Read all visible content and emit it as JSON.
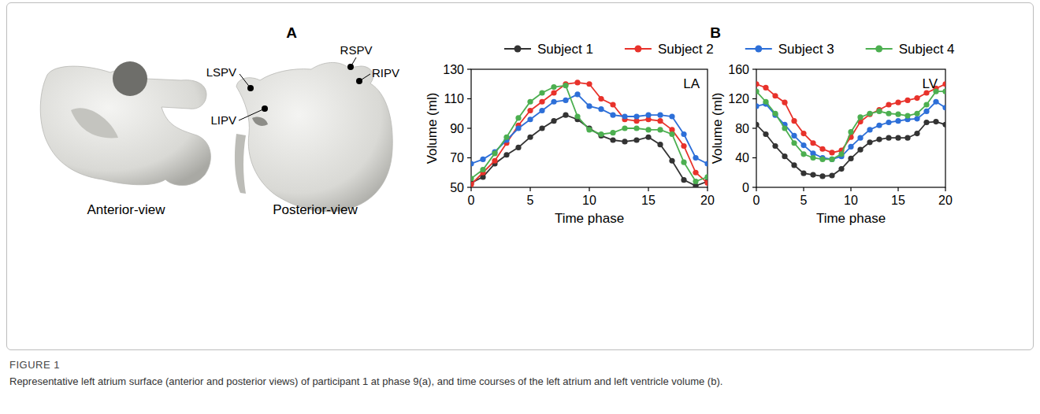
{
  "figure": {
    "label": "FIGURE 1",
    "caption": "Representative left atrium surface (anterior and posterior views) of participant 1 at phase 9(a), and time courses of the left atrium and left ventricle volume (b).",
    "panel_labels": [
      "A",
      "B"
    ],
    "views": [
      "Anterior-view",
      "Posterior-view"
    ],
    "vein_labels": [
      "LSPV",
      "RSPV",
      "RIPV",
      "LIPV"
    ]
  },
  "chart_data": [
    {
      "type": "line",
      "title": "LA",
      "x_label": "Time phase",
      "y_label": "Volume (ml)",
      "x": [
        0,
        1,
        2,
        3,
        4,
        5,
        6,
        7,
        8,
        9,
        10,
        11,
        12,
        13,
        14,
        15,
        16,
        17,
        18,
        19,
        20
      ],
      "xlim": [
        0,
        20
      ],
      "xticks": [
        0,
        5,
        10,
        15,
        20
      ],
      "ylim": [
        50,
        130
      ],
      "yticks": [
        50,
        70,
        90,
        110,
        130
      ],
      "legend": "top",
      "marker": "circle",
      "grid": false,
      "series": [
        {
          "name": "Subject 1",
          "color": "#333333",
          "values": [
            53,
            57,
            66,
            72,
            77,
            84,
            90,
            95,
            99,
            96,
            90,
            85,
            82,
            81,
            82,
            84,
            79,
            68,
            55,
            51,
            54
          ]
        },
        {
          "name": "Subject 2",
          "color": "#e8322b",
          "values": [
            52,
            60,
            68,
            80,
            92,
            102,
            108,
            114,
            120,
            121,
            120,
            110,
            106,
            96,
            95,
            96,
            95,
            89,
            78,
            60,
            53
          ]
        },
        {
          "name": "Subject 3",
          "color": "#2d6fd8",
          "values": [
            66,
            69,
            74,
            82,
            90,
            96,
            102,
            108,
            109,
            113,
            105,
            103,
            99,
            98,
            98,
            99,
            99,
            98,
            86,
            70,
            66
          ]
        },
        {
          "name": "Subject 4",
          "color": "#4caf50",
          "values": [
            56,
            62,
            73,
            84,
            97,
            108,
            114,
            118,
            119,
            98,
            89,
            86,
            87,
            90,
            90,
            89,
            89,
            86,
            67,
            54,
            57
          ]
        }
      ]
    },
    {
      "type": "line",
      "title": "LV",
      "x_label": "Time phase",
      "y_label": "Volume (ml)",
      "x": [
        0,
        1,
        2,
        3,
        4,
        5,
        6,
        7,
        8,
        9,
        10,
        11,
        12,
        13,
        14,
        15,
        16,
        17,
        18,
        19,
        20
      ],
      "xlim": [
        0,
        20
      ],
      "xticks": [
        0,
        5,
        10,
        15,
        20
      ],
      "ylim": [
        0,
        160
      ],
      "yticks": [
        0,
        40,
        80,
        120,
        160
      ],
      "marker": "circle",
      "grid": false,
      "series": [
        {
          "color": "#333333",
          "values": [
            85,
            72,
            56,
            42,
            30,
            19,
            17,
            15,
            16,
            25,
            39,
            51,
            61,
            65,
            67,
            67,
            67,
            73,
            88,
            89,
            85
          ]
        },
        {
          "color": "#e8322b",
          "values": [
            140,
            135,
            124,
            115,
            90,
            73,
            60,
            52,
            47,
            50,
            68,
            89,
            99,
            105,
            112,
            115,
            118,
            121,
            128,
            134,
            140
          ]
        },
        {
          "color": "#2d6fd8",
          "values": [
            110,
            113,
            98,
            85,
            70,
            57,
            46,
            40,
            38,
            42,
            55,
            67,
            78,
            84,
            88,
            90,
            92,
            93,
            103,
            116,
            108
          ]
        },
        {
          "color": "#4caf50",
          "values": [
            130,
            116,
            100,
            80,
            60,
            45,
            40,
            38,
            38,
            45,
            75,
            95,
            100,
            103,
            100,
            99,
            97,
            100,
            112,
            130,
            130
          ]
        }
      ]
    }
  ]
}
